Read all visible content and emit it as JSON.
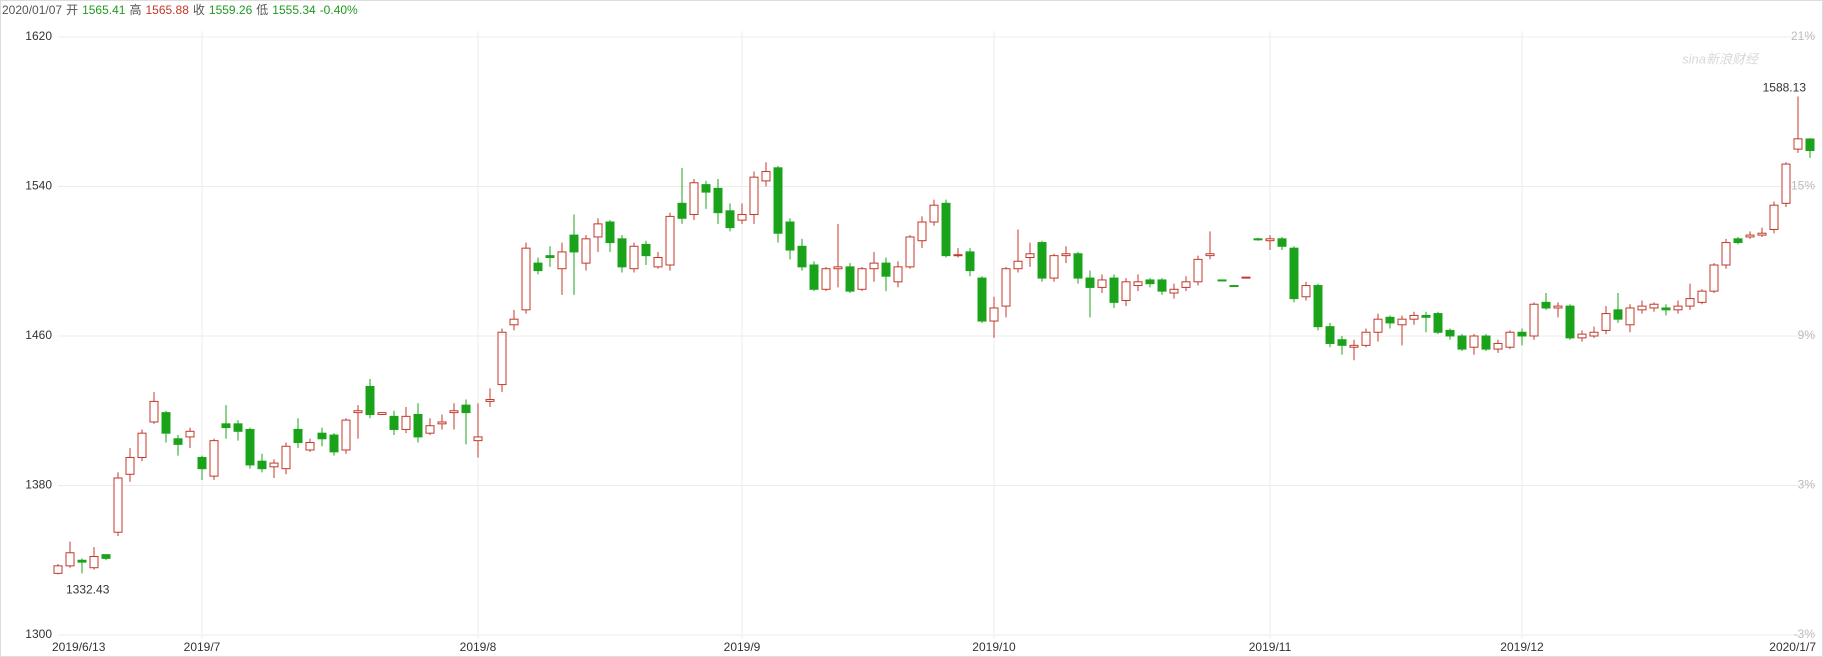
{
  "chart_data": {
    "type": "candlestick",
    "header": {
      "date": "2020/01/07",
      "open_label": "开",
      "open": 1565.41,
      "high_label": "高",
      "high": 1565.88,
      "close_label": "收",
      "close": 1559.26,
      "low_label": "低",
      "low": 1555.34,
      "change": "-0.40%"
    },
    "watermark": "sina新浪财经",
    "low_label": "1332.43",
    "high_label": "1588.13",
    "up_color": "#c0392b",
    "down_color": "#1aa31a",
    "grid": true,
    "categories": [
      "2019/6/13",
      null,
      null,
      null,
      null,
      null,
      null,
      null,
      null,
      null,
      null,
      null,
      "2019/7",
      null,
      null,
      null,
      null,
      null,
      null,
      null,
      null,
      null,
      null,
      null,
      null,
      null,
      null,
      null,
      null,
      null,
      null,
      null,
      null,
      null,
      null,
      "2019/8",
      null,
      null,
      null,
      null,
      null,
      null,
      null,
      null,
      null,
      null,
      null,
      null,
      null,
      null,
      null,
      null,
      null,
      null,
      null,
      null,
      null,
      "2019/9",
      null,
      null,
      null,
      null,
      null,
      null,
      null,
      null,
      null,
      null,
      null,
      null,
      null,
      null,
      null,
      null,
      null,
      null,
      null,
      null,
      "2019/10",
      null,
      null,
      null,
      null,
      null,
      null,
      null,
      null,
      null,
      null,
      null,
      null,
      null,
      null,
      null,
      null,
      null,
      null,
      null,
      null,
      null,
      null,
      "2019/11",
      null,
      null,
      null,
      null,
      null,
      null,
      null,
      null,
      null,
      null,
      null,
      null,
      null,
      null,
      null,
      null,
      null,
      null,
      null,
      null,
      "2019/12",
      null,
      null,
      null,
      null,
      null,
      null,
      null,
      null,
      null,
      null,
      null,
      null,
      null,
      null,
      null,
      null,
      null,
      null,
      null,
      null,
      null,
      null,
      null,
      "2020/1/7"
    ],
    "open": [
      1333,
      1337,
      1340,
      1336,
      1343,
      1355,
      1386,
      1395,
      1414,
      1419,
      1405,
      1406,
      1395,
      1385,
      1413,
      1413,
      1410,
      1393,
      1390,
      1389,
      1410,
      1399,
      1408,
      1407,
      1399,
      1419,
      1433,
      1418,
      1417,
      1410,
      1418,
      1408,
      1413,
      1419,
      1423,
      1404,
      1425,
      1434,
      1466,
      1474,
      1499,
      1503,
      1496,
      1514,
      1499,
      1513,
      1521,
      1512,
      1496,
      1509,
      1497,
      1498,
      1531,
      1525,
      1541,
      1539,
      1527,
      1522,
      1525,
      1543,
      1550,
      1521,
      1508,
      1498,
      1485,
      1496,
      1497,
      1485,
      1496,
      1499,
      1489,
      1497,
      1511,
      1521,
      1531,
      1503,
      1505,
      1491,
      1468,
      1476,
      1496,
      1502,
      1510,
      1491,
      1503,
      1504,
      1491,
      1486,
      1491,
      1479,
      1487,
      1490,
      1490,
      1483,
      1486,
      1489,
      1503,
      1490,
      1487,
      1491,
      1512,
      1511,
      1512,
      1507,
      1481,
      1487,
      1465,
      1458,
      1454,
      1455,
      1462,
      1470,
      1466,
      1469,
      1471,
      1472,
      1463,
      1460,
      1454,
      1460,
      1453,
      1454,
      1462,
      1460,
      1478,
      1475,
      1476,
      1459,
      1460,
      1463,
      1474,
      1466,
      1474,
      1475,
      1475,
      1474,
      1476,
      1478,
      1484,
      1498,
      1512,
      1513,
      1514,
      1517,
      1531,
      1560,
      1565.41
    ],
    "high": [
      1338,
      1350,
      1341,
      1347,
      1343,
      1387,
      1400,
      1410,
      1430,
      1420,
      1407,
      1411,
      1396,
      1405,
      1423,
      1415,
      1411,
      1397,
      1394,
      1403,
      1416,
      1405,
      1411,
      1408,
      1416,
      1423,
      1437,
      1419,
      1420,
      1422,
      1424,
      1416,
      1418,
      1424,
      1426,
      1424,
      1432,
      1464,
      1474,
      1510,
      1502,
      1508,
      1510,
      1525,
      1514,
      1523,
      1522,
      1514,
      1510,
      1511,
      1505,
      1526,
      1550,
      1544,
      1543,
      1544,
      1531,
      1531,
      1548,
      1553,
      1551,
      1523,
      1512,
      1500,
      1497,
      1520,
      1499,
      1497,
      1505,
      1502,
      1500,
      1514,
      1524,
      1533,
      1533,
      1507,
      1507,
      1492,
      1481,
      1497,
      1517,
      1510,
      1511,
      1504,
      1508,
      1505,
      1495,
      1493,
      1493,
      1491,
      1493,
      1491,
      1491,
      1488,
      1492,
      1503,
      1516,
      1490,
      1487,
      1491.5,
      1512.5,
      1514,
      1513,
      1508,
      1489,
      1488,
      1467,
      1460,
      1458,
      1464,
      1472,
      1471,
      1471,
      1473,
      1473,
      1473,
      1464,
      1461,
      1461,
      1461,
      1458,
      1463,
      1464,
      1478,
      1483,
      1478,
      1477,
      1463,
      1465,
      1476,
      1483,
      1477,
      1479,
      1478,
      1477,
      1479,
      1488,
      1485,
      1499,
      1512,
      1513,
      1516,
      1518,
      1532,
      1553,
      1588.13,
      1565.88
    ],
    "low": [
      1332.43,
      1336,
      1333,
      1335,
      1340,
      1353,
      1382,
      1393,
      1413,
      1403,
      1396,
      1400,
      1383,
      1383,
      1405,
      1404,
      1389,
      1387,
      1384,
      1386,
      1400,
      1398,
      1401,
      1396,
      1397,
      1405,
      1416,
      1418,
      1407,
      1408,
      1403,
      1407,
      1410,
      1410,
      1402,
      1395,
      1422,
      1430,
      1463,
      1472,
      1493,
      1497,
      1482,
      1482,
      1495,
      1505,
      1505,
      1494,
      1494,
      1498,
      1496,
      1495,
      1520,
      1522,
      1528,
      1520,
      1516,
      1520,
      1520,
      1540,
      1510,
      1501,
      1495,
      1484,
      1484,
      1486,
      1483,
      1484,
      1489,
      1484,
      1486,
      1496,
      1507,
      1519,
      1502,
      1502,
      1492,
      1467,
      1459,
      1470,
      1494,
      1497,
      1489,
      1489,
      1499,
      1488,
      1470,
      1483,
      1475,
      1476,
      1484,
      1486,
      1482,
      1480,
      1484,
      1487,
      1501,
      1489.5,
      1486.5,
      1491,
      1511,
      1506,
      1506,
      1478,
      1479,
      1463,
      1454,
      1450,
      1447,
      1454,
      1457,
      1464,
      1455,
      1466,
      1462,
      1461,
      1458,
      1452,
      1450,
      1452,
      1451,
      1453,
      1455,
      1458,
      1474,
      1470,
      1458,
      1457,
      1459,
      1461,
      1467,
      1462,
      1472,
      1473,
      1471,
      1472,
      1474,
      1477,
      1483,
      1496,
      1509,
      1512,
      1513,
      1515,
      1529,
      1558,
      1555.34
    ],
    "close": [
      1337,
      1344,
      1339,
      1342,
      1341,
      1384,
      1395,
      1408,
      1425,
      1408,
      1402,
      1409,
      1389,
      1404,
      1411,
      1409,
      1391,
      1389,
      1392,
      1401,
      1403,
      1403,
      1405,
      1398,
      1415,
      1420,
      1418,
      1419,
      1410,
      1417,
      1406,
      1412,
      1414,
      1420,
      1419,
      1406,
      1426,
      1462,
      1469,
      1507,
      1495,
      1502,
      1505,
      1505,
      1512,
      1520,
      1510,
      1497,
      1508,
      1503,
      1502,
      1524,
      1523,
      1542,
      1537,
      1526,
      1518,
      1525,
      1545,
      1548,
      1515,
      1506,
      1497,
      1485,
      1496,
      1497,
      1484,
      1496,
      1499,
      1492,
      1497,
      1513,
      1521,
      1530,
      1503,
      1503.5,
      1495,
      1468,
      1475,
      1496,
      1500,
      1504,
      1491,
      1503,
      1504,
      1491,
      1486,
      1490,
      1478,
      1489,
      1489,
      1488,
      1484,
      1485,
      1489,
      1501,
      1504,
      1489.5,
      1486.5,
      1491.5,
      1511.5,
      1512,
      1508,
      1480,
      1487,
      1465,
      1456,
      1455,
      1455,
      1462,
      1469,
      1467,
      1469,
      1471,
      1470,
      1462,
      1460,
      1453,
      1460,
      1453,
      1456,
      1462,
      1460,
      1477,
      1475,
      1476,
      1459,
      1461,
      1462,
      1472,
      1469,
      1475,
      1476,
      1477,
      1474,
      1476,
      1480,
      1484,
      1498,
      1510,
      1510,
      1514,
      1515,
      1530,
      1552,
      1565.52,
      1559.26
    ],
    "ylim": [
      1300,
      1620
    ],
    "yticks": [
      1300,
      1380,
      1460,
      1540,
      1620
    ],
    "y2lim": [
      -3,
      21
    ],
    "y2ticks": [
      {
        "value": -3,
        "label": "-3%"
      },
      {
        "value": 3,
        "label": "3%"
      },
      {
        "value": 9,
        "label": "9%"
      },
      {
        "value": 15,
        "label": "15%"
      },
      {
        "value": 21,
        "label": "21%"
      }
    ]
  }
}
